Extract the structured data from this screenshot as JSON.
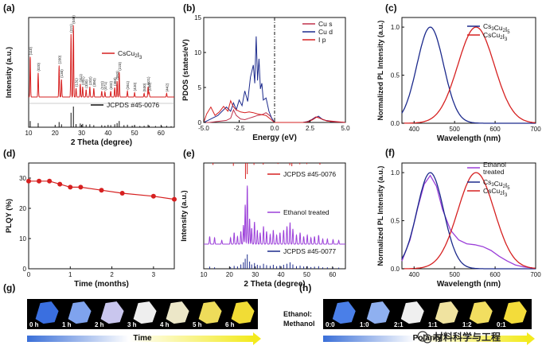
{
  "colors": {
    "red": "#d62020",
    "navy": "#1c2a8c",
    "purple": "#9b3fd9",
    "pinkred": "#c0304a",
    "bar_blue": "#3a7bd5",
    "bar_yellow": "#f3ea1e",
    "axis": "#111111"
  },
  "chart_data": [
    {
      "id": "a",
      "panel_label": "(a)",
      "type": "line",
      "xlabel": "2 Theta (degree)",
      "ylabel": "Intensity (a.u.)",
      "xlim": [
        10,
        65
      ],
      "xticks": [
        10,
        20,
        30,
        40,
        50,
        60
      ],
      "series": [
        {
          "name": "CsCu2I3",
          "color": "#d62020",
          "peaks": [
            {
              "x": 10.6,
              "h": 0.55,
              "label": "(110)"
            },
            {
              "x": 13.6,
              "h": 0.33,
              "label": "(020)"
            },
            {
              "x": 21.5,
              "h": 0.43,
              "label": "(200)"
            },
            {
              "x": 22.4,
              "h": 0.24,
              "label": "(130)"
            },
            {
              "x": 26.0,
              "h": 0.86,
              "label": "(221)"
            },
            {
              "x": 26.9,
              "h": 0.98,
              "label": "(040)"
            },
            {
              "x": 27.9,
              "h": 0.12,
              "label": "(131)"
            },
            {
              "x": 29.5,
              "h": 0.18,
              "label": "(311)"
            },
            {
              "x": 30.4,
              "h": 0.14,
              "label": "(241)"
            },
            {
              "x": 31.7,
              "h": 0.1,
              "label": "(330)"
            },
            {
              "x": 33.1,
              "h": 0.14,
              "label": "(202)"
            },
            {
              "x": 34.6,
              "h": 0.12,
              "label": "(350)"
            },
            {
              "x": 37.6,
              "h": 0.08,
              "label": "(222)"
            },
            {
              "x": 38.8,
              "h": 0.07,
              "label": "(471)"
            },
            {
              "x": 41.0,
              "h": 0.08,
              "label": "(402)"
            },
            {
              "x": 42.5,
              "h": 0.13,
              "label": "(460)"
            },
            {
              "x": 43.4,
              "h": 0.22,
              "label": "(063)"
            },
            {
              "x": 44.2,
              "h": 0.34,
              "label": "(223)"
            },
            {
              "x": 47.3,
              "h": 0.08,
              "label": "(261)"
            },
            {
              "x": 50.0,
              "h": 0.06,
              "label": "(420)"
            },
            {
              "x": 53.6,
              "h": 0.05,
              "label": "(530)"
            },
            {
              "x": 55.1,
              "h": 0.14,
              "label": "(621)"
            },
            {
              "x": 55.5,
              "h": 0.06,
              "label": "(080)"
            },
            {
              "x": 62.1,
              "h": 0.05,
              "label": "(442)"
            }
          ]
        }
      ],
      "legend_label": "CsCu2I3",
      "ref_label": "JCPDS #45-0076",
      "ref_sticks": [
        [
          10.6,
          0.3
        ],
        [
          13.6,
          0.2
        ],
        [
          21.5,
          0.25
        ],
        [
          22.4,
          0.14
        ],
        [
          26.0,
          0.7
        ],
        [
          26.9,
          1.0
        ],
        [
          27.9,
          0.15
        ],
        [
          29.5,
          0.18
        ],
        [
          30.4,
          0.16
        ],
        [
          31.7,
          0.12
        ],
        [
          33.1,
          0.14
        ],
        [
          34.6,
          0.1
        ],
        [
          37.6,
          0.1
        ],
        [
          38.8,
          0.08
        ],
        [
          41.0,
          0.1
        ],
        [
          42.5,
          0.14
        ],
        [
          43.4,
          0.2
        ],
        [
          44.2,
          0.3
        ],
        [
          46.0,
          0.1
        ],
        [
          47.3,
          0.12
        ],
        [
          49.1,
          0.08
        ],
        [
          50.0,
          0.1
        ],
        [
          52.0,
          0.06
        ],
        [
          53.6,
          0.07
        ],
        [
          55.1,
          0.12
        ],
        [
          55.5,
          0.08
        ],
        [
          57.9,
          0.06
        ],
        [
          60.3,
          0.05
        ],
        [
          62.1,
          0.07
        ],
        [
          63.8,
          0.05
        ]
      ]
    },
    {
      "id": "b",
      "panel_label": "(b)",
      "type": "line",
      "xlabel": "Energy (eV)",
      "ylabel": "PDOS (states/eV)",
      "xlim": [
        -5,
        5
      ],
      "ylim": [
        0,
        15
      ],
      "xticks": [
        -5.0,
        -2.5,
        0.0,
        2.5,
        5.0
      ],
      "yticks": [
        0,
        5,
        10,
        15
      ],
      "fermi_level": 0,
      "series": [
        {
          "name": "Cu s",
          "color": "#c0304a",
          "x": [
            -5.0,
            -4.6,
            -4.2,
            -3.8,
            -3.4,
            -3.1,
            -2.9,
            -2.7,
            -2.4,
            -2.1,
            -1.8,
            -1.5,
            -1.2,
            -0.9,
            -0.6,
            -0.3,
            0.0,
            0.5,
            1.0,
            1.5,
            2.0,
            2.3,
            2.6,
            2.9,
            3.2,
            3.6,
            4.0,
            4.5,
            5.0
          ],
          "y": [
            0,
            0,
            0.1,
            0.2,
            0.3,
            0.6,
            1.8,
            1.0,
            0.5,
            0.4,
            0.6,
            0.8,
            1.0,
            1.1,
            1.4,
            0.9,
            0,
            0,
            0,
            0,
            0,
            0.1,
            0.4,
            0.8,
            0.6,
            0.3,
            0.2,
            0.1,
            0
          ]
        },
        {
          "name": "Cu d",
          "color": "#1c2a8c",
          "x": [
            -5.0,
            -4.7,
            -4.4,
            -4.0,
            -3.7,
            -3.4,
            -3.1,
            -2.9,
            -2.7,
            -2.5,
            -2.3,
            -2.1,
            -1.9,
            -1.7,
            -1.5,
            -1.4,
            -1.3,
            -1.2,
            -1.1,
            -1.0,
            -0.9,
            -0.8,
            -0.6,
            -0.4,
            -0.2,
            0.0,
            1.0,
            2.0,
            2.5,
            2.8,
            3.1,
            3.4,
            4.0,
            5.0
          ],
          "y": [
            0,
            0.3,
            0.6,
            1.0,
            1.6,
            2.2,
            1.6,
            2.8,
            1.8,
            3.2,
            2.4,
            4.5,
            3.0,
            6.5,
            8.2,
            5.6,
            12.3,
            6.0,
            9.1,
            4.8,
            5.6,
            3.2,
            3.5,
            1.6,
            0.6,
            0,
            0,
            0,
            0.2,
            0.6,
            0.9,
            0.4,
            0.1,
            0
          ]
        },
        {
          "name": "I p",
          "color": "#d62020",
          "x": [
            -5.0,
            -4.8,
            -4.5,
            -4.2,
            -3.9,
            -3.6,
            -3.3,
            -3.1,
            -2.9,
            -2.7,
            -2.4,
            -2.1,
            -1.8,
            -1.5,
            -1.2,
            -0.9,
            -0.6,
            -0.3,
            0.0,
            0.5,
            1.0,
            2.0,
            2.4,
            2.7,
            3.0,
            3.3,
            3.7,
            4.2,
            5.0
          ],
          "y": [
            0,
            1.2,
            2.2,
            1.0,
            1.5,
            2.3,
            1.6,
            3.1,
            2.2,
            1.8,
            1.5,
            1.4,
            1.5,
            1.4,
            1.2,
            1.1,
            1.0,
            0.5,
            0,
            0,
            0,
            0,
            0.1,
            0.4,
            0.8,
            0.5,
            0.2,
            0.1,
            0
          ]
        }
      ]
    },
    {
      "id": "c",
      "panel_label": "(c)",
      "type": "line",
      "xlabel": "Wavelength (nm)",
      "ylabel": "Normalized PL Intensity (a.u.)",
      "xlim": [
        370,
        700
      ],
      "ylim": [
        0,
        1.1
      ],
      "xticks": [
        400,
        500,
        600,
        700
      ],
      "yticks": [
        0.0,
        0.5,
        1.0
      ],
      "series": [
        {
          "name": "Cs3Cu2I5",
          "color": "#1c2a8c",
          "peak": 440,
          "sigma_left": 33,
          "sigma_right": 33
        },
        {
          "name": "CsCu2I3",
          "color": "#d62020",
          "peak": 553,
          "sigma_left": 45,
          "sigma_right": 45
        }
      ]
    },
    {
      "id": "d",
      "panel_label": "(d)",
      "type": "line",
      "xlabel": "Time (months)",
      "ylabel": "PLQY (%)",
      "xlim": [
        0,
        3.5
      ],
      "ylim": [
        0,
        35
      ],
      "xticks": [
        0,
        1,
        2,
        3
      ],
      "yticks": [
        0,
        10,
        20,
        30
      ],
      "series": [
        {
          "name": "PLQY",
          "color": "#d62020",
          "x": [
            0,
            0.25,
            0.5,
            0.75,
            1.0,
            1.25,
            1.75,
            2.25,
            3.0,
            3.5
          ],
          "y": [
            29,
            29,
            29,
            28,
            27,
            27,
            26,
            25,
            24,
            23
          ]
        }
      ]
    },
    {
      "id": "e",
      "panel_label": "(e)",
      "type": "line",
      "xlabel": "2 Theta (degree)",
      "ylabel": "Intensity (a.u.)",
      "xlim": [
        10,
        65
      ],
      "xticks": [
        10,
        20,
        30,
        40,
        50,
        60
      ],
      "legend_top": "JCPDS #45-0076",
      "legend_mid": "Ethanol treated",
      "legend_bottom": "JCPDS #45-0077",
      "series": [
        {
          "name": "Ethanol treated",
          "color": "#9b3fd9",
          "peaks": [
            [
              12.3,
              0.12
            ],
            [
              14.2,
              0.1
            ],
            [
              17.0,
              0.06
            ],
            [
              20.4,
              0.1
            ],
            [
              21.8,
              0.18
            ],
            [
              23.1,
              0.12
            ],
            [
              24.4,
              0.2
            ],
            [
              25.4,
              0.3
            ],
            [
              26.1,
              0.62
            ],
            [
              26.9,
              0.92
            ],
            [
              27.8,
              0.4
            ],
            [
              28.6,
              0.25
            ],
            [
              29.7,
              0.35
            ],
            [
              30.8,
              0.22
            ],
            [
              31.9,
              0.18
            ],
            [
              33.2,
              0.28
            ],
            [
              34.4,
              0.2
            ],
            [
              35.8,
              0.15
            ],
            [
              37.0,
              0.22
            ],
            [
              38.3,
              0.14
            ],
            [
              39.6,
              0.18
            ],
            [
              41.0,
              0.22
            ],
            [
              42.3,
              0.28
            ],
            [
              43.5,
              0.34
            ],
            [
              44.6,
              0.24
            ],
            [
              46.0,
              0.14
            ],
            [
              47.4,
              0.18
            ],
            [
              48.8,
              0.12
            ],
            [
              50.2,
              0.14
            ],
            [
              51.6,
              0.1
            ],
            [
              53.0,
              0.12
            ],
            [
              54.6,
              0.14
            ],
            [
              56.2,
              0.08
            ],
            [
              58.0,
              0.08
            ],
            [
              60.2,
              0.07
            ],
            [
              62.4,
              0.06
            ]
          ]
        }
      ],
      "ref_top_sticks": [
        [
          26.2,
          1.0
        ],
        [
          26.9,
          0.7
        ],
        [
          21.5,
          0.18
        ],
        [
          13.6,
          0.12
        ],
        [
          44.2,
          0.2
        ],
        [
          43.4,
          0.14
        ],
        [
          29.5,
          0.12
        ],
        [
          33.1,
          0.1
        ],
        [
          55.1,
          0.1
        ],
        [
          38.8,
          0.06
        ],
        [
          47.3,
          0.08
        ],
        [
          50.0,
          0.07
        ]
      ],
      "ref_bottom_sticks": [
        [
          12.3,
          0.15
        ],
        [
          14.2,
          0.1
        ],
        [
          20.4,
          0.12
        ],
        [
          21.8,
          0.2
        ],
        [
          23.1,
          0.16
        ],
        [
          24.4,
          0.3
        ],
        [
          25.4,
          0.45
        ],
        [
          26.1,
          0.7
        ],
        [
          26.9,
          1.0
        ],
        [
          27.8,
          0.5
        ],
        [
          28.6,
          0.3
        ],
        [
          29.7,
          0.4
        ],
        [
          30.8,
          0.28
        ],
        [
          31.9,
          0.22
        ],
        [
          33.2,
          0.35
        ],
        [
          34.4,
          0.25
        ],
        [
          35.8,
          0.2
        ],
        [
          37.0,
          0.28
        ],
        [
          38.3,
          0.18
        ],
        [
          39.6,
          0.22
        ],
        [
          41.0,
          0.28
        ],
        [
          42.3,
          0.35
        ],
        [
          43.5,
          0.45
        ],
        [
          44.6,
          0.3
        ],
        [
          46.0,
          0.18
        ],
        [
          47.4,
          0.22
        ],
        [
          48.8,
          0.16
        ],
        [
          50.2,
          0.18
        ],
        [
          51.6,
          0.12
        ],
        [
          53.0,
          0.15
        ],
        [
          54.6,
          0.18
        ],
        [
          56.2,
          0.1
        ],
        [
          58.0,
          0.1
        ],
        [
          60.2,
          0.09
        ],
        [
          62.4,
          0.08
        ]
      ]
    },
    {
      "id": "f",
      "panel_label": "(f)",
      "type": "line",
      "xlabel": "Wavelength (nm)",
      "ylabel": "Normalized PL Intensity (a.u.)",
      "xlim": [
        370,
        700
      ],
      "ylim": [
        0,
        1.1
      ],
      "xticks": [
        400,
        500,
        600,
        700
      ],
      "yticks": [
        0.0,
        0.5,
        1.0
      ],
      "series": [
        {
          "name": "Ethanol treated",
          "color": "#9b3fd9",
          "x": [
            370,
            390,
            410,
            425,
            440,
            455,
            470,
            490,
            510,
            530,
            550,
            570,
            590,
            610,
            630,
            650,
            670,
            690,
            700
          ],
          "y": [
            0.08,
            0.3,
            0.65,
            0.88,
            0.97,
            0.86,
            0.62,
            0.4,
            0.3,
            0.26,
            0.25,
            0.23,
            0.19,
            0.13,
            0.08,
            0.04,
            0.02,
            0.01,
            0.0
          ]
        },
        {
          "name": "Cs3Cu2I5",
          "color": "#1c2a8c",
          "peak": 440,
          "sigma_left": 33,
          "sigma_right": 33
        },
        {
          "name": "CsCu2I3",
          "color": "#d62020",
          "peak": 553,
          "sigma_left": 45,
          "sigma_right": 45
        }
      ]
    }
  ],
  "photo_rows": [
    {
      "id": "g",
      "panel_label": "(g)",
      "axis_title": "Time",
      "side_label": [],
      "samples": [
        {
          "label": "0 h",
          "color": "#3a6fe0"
        },
        {
          "label": "1 h",
          "color": "#7fa3ee"
        },
        {
          "label": "2 h",
          "color": "#c9c6ee"
        },
        {
          "label": "3 h",
          "color": "#eeeeee"
        },
        {
          "label": "4 h",
          "color": "#ece7c8"
        },
        {
          "label": "5 h",
          "color": "#eedc5a"
        },
        {
          "label": "6 h",
          "color": "#f1dc35"
        }
      ]
    },
    {
      "id": "h",
      "panel_label": "(h)",
      "axis_title": "Polarity",
      "side_label": [
        "Ethanol:",
        "Methanol"
      ],
      "samples": [
        {
          "label": "0:0",
          "color": "#4a7fe8"
        },
        {
          "label": "1:0",
          "color": "#8fb0f0"
        },
        {
          "label": "2:1",
          "color": "#efefef"
        },
        {
          "label": "1:1",
          "color": "#f0e3a0"
        },
        {
          "label": "1:2",
          "color": "#f2de60"
        },
        {
          "label": "0:1",
          "color": "#f3dc3a"
        }
      ]
    }
  ],
  "watermark": "材料科学与工程"
}
